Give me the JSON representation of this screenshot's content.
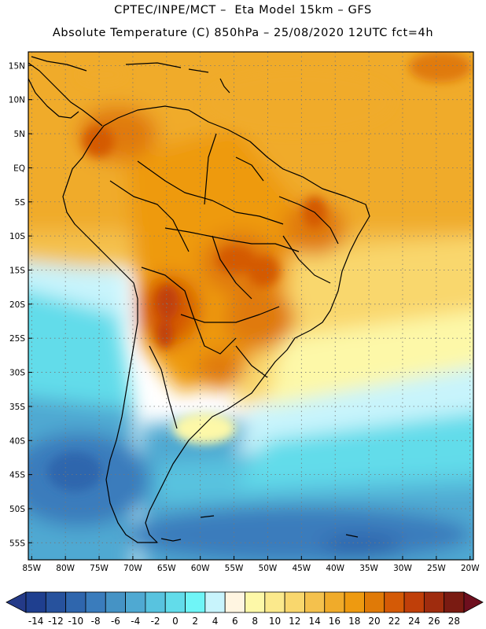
{
  "title": {
    "line1": "CPTEC/INPE/MCT –  Eta Model 15km – GFS",
    "line2": "Absolute Temperature (C) 850hPa – 25/08/2020 12UTC fct=4h"
  },
  "map": {
    "variable": "Absolute Temperature (C) 850hPa",
    "lat_labels": [
      "15N",
      "10N",
      "5N",
      "EQ",
      "5S",
      "10S",
      "15S",
      "20S",
      "25S",
      "30S",
      "35S",
      "40S",
      "45S",
      "50S",
      "55S"
    ],
    "lon_labels": [
      "85W",
      "80W",
      "75W",
      "70W",
      "65W",
      "60W",
      "55W",
      "50W",
      "45W",
      "40W",
      "35W",
      "30W",
      "25W",
      "20W"
    ],
    "lat_values": [
      15,
      10,
      5,
      0,
      -5,
      -10,
      -15,
      -20,
      -25,
      -30,
      -35,
      -40,
      -45,
      -50,
      -55
    ],
    "lon_values": [
      -85,
      -80,
      -75,
      -70,
      -65,
      -60,
      -55,
      -50,
      -45,
      -40,
      -35,
      -30,
      -25,
      -20
    ],
    "extent": {
      "lon_min": -85.5,
      "lon_max": -19.5,
      "lat_min": -57.5,
      "lat_max": 17
    }
  },
  "colorbar": {
    "labels": [
      "-14",
      "-12",
      "-10",
      "-8",
      "-6",
      "-4",
      "-2",
      "0",
      "2",
      "4",
      "6",
      "8",
      "10",
      "12",
      "14",
      "16",
      "18",
      "20",
      "22",
      "24",
      "26",
      "28"
    ],
    "colors": [
      "#1f3f8f",
      "#27529d",
      "#2f66ad",
      "#3a7cbc",
      "#4593c5",
      "#4fa9d2",
      "#58c3df",
      "#62dcea",
      "#6ff5f7",
      "#c8f4fc",
      "#fff5e1",
      "#fdf8a8",
      "#fbe98c",
      "#f9d76d",
      "#f4c14d",
      "#f0ab2a",
      "#ee9a10",
      "#e07a07",
      "#d45a06",
      "#c03f09",
      "#9f2c0e",
      "#7a1b12"
    ],
    "under_color": "#243a88",
    "over_color": "#6e0f1e"
  }
}
